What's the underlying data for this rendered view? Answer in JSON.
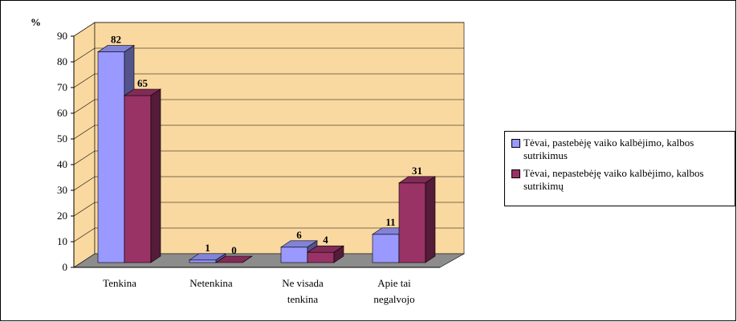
{
  "chart_data": {
    "type": "bar3d",
    "ylabel": "%",
    "categories": [
      [
        "Tenkina"
      ],
      [
        "Netenkina"
      ],
      [
        "Ne visada",
        "tenkina"
      ],
      [
        "Apie tai",
        "negalvojo"
      ]
    ],
    "series": [
      {
        "name": "Tėvai, pastebėję vaiko kalbėjimo, kalbos sutrikimus",
        "color": "#9999ff",
        "values": [
          82,
          1,
          6,
          11
        ]
      },
      {
        "name": "Tėvai, nepastebėję vaiko kalbėjimo, kalbos sutrikimų",
        "color": "#993366",
        "values": [
          65,
          0,
          4,
          31
        ]
      }
    ],
    "ylim": [
      0,
      90
    ],
    "yticks": [
      0,
      10,
      20,
      30,
      40,
      50,
      60,
      70,
      80,
      90
    ],
    "grid": true,
    "legend": "right"
  }
}
